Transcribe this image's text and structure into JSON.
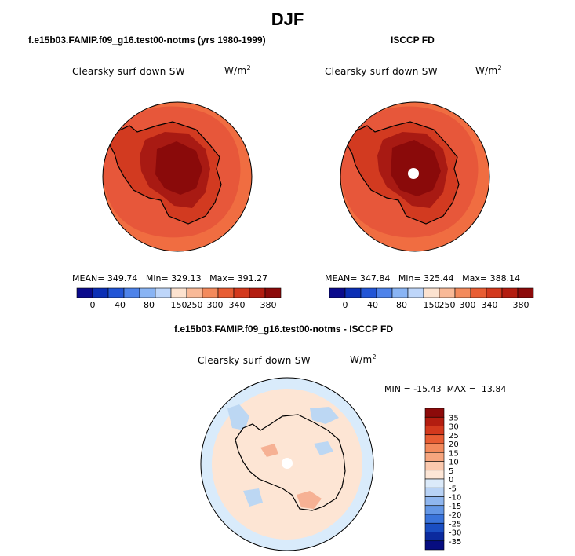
{
  "page": {
    "title": "DJF",
    "diff_title": "f.e15b03.FAMIP.f09_g16.test00-notms - ISCCP FD"
  },
  "colors": {
    "coast": "#000000",
    "ocean_outer_top": "#f06d41",
    "ocean_inner_top": "#e7573a",
    "antarctica_top": "#d23a20",
    "plateau_top": "#a81a13",
    "dome_top": "#8a0a0a",
    "missing": "#ffffff",
    "diff_ocean": "#fde5d4",
    "diff_ring": "#d9ebfb",
    "diff_pos": "#f6b194",
    "diff_neg": "#bcd7f3"
  },
  "chart_data": [
    {
      "type": "heatmap",
      "title": "f.e15b03.FAMIP.f09_g16.test00-notms (yrs 1980-1999)",
      "subtitle": "Clearsky surf down SW",
      "units_base": "W/m",
      "units_exp": "2",
      "stats": {
        "mean_label": "MEAN=",
        "mean": "349.74",
        "min_label": "Min=",
        "min": "329.13",
        "max_label": "Max=",
        "max": "391.27"
      },
      "colorbar": {
        "orientation": "horizontal",
        "levels": [
          "0",
          "40",
          "80",
          "150",
          "250",
          "300",
          "340",
          "380"
        ],
        "colors": [
          "#0a0a8c",
          "#0b2fb5",
          "#2255d6",
          "#4e83ea",
          "#89b4f4",
          "#bed6fa",
          "#fce2cf",
          "#f9b997",
          "#f38a5c",
          "#e85d33",
          "#d3391d",
          "#b31d10",
          "#8c0a0a"
        ]
      }
    },
    {
      "type": "heatmap",
      "title": "ISCCP FD",
      "subtitle": "Clearsky surf down SW",
      "units_base": "W/m",
      "units_exp": "2",
      "stats": {
        "mean_label": "MEAN=",
        "mean": "347.84",
        "min_label": "Min=",
        "min": "325.44",
        "max_label": "Max=",
        "max": "388.14"
      },
      "colorbar": {
        "orientation": "horizontal",
        "levels": [
          "0",
          "40",
          "80",
          "150",
          "250",
          "300",
          "340",
          "380"
        ],
        "colors": [
          "#0a0a8c",
          "#0b2fb5",
          "#2255d6",
          "#4e83ea",
          "#89b4f4",
          "#bed6fa",
          "#fce2cf",
          "#f9b997",
          "#f38a5c",
          "#e85d33",
          "#d3391d",
          "#b31d10",
          "#8c0a0a"
        ]
      }
    },
    {
      "type": "heatmap",
      "title": "f.e15b03.FAMIP.f09_g16.test00-notms - ISCCP FD",
      "subtitle": "Clearsky surf down SW",
      "units_base": "W/m",
      "units_exp": "2",
      "stats": {
        "min_label": "MIN =",
        "min": "-15.43",
        "max_label": "MAX =",
        "max": "13.84"
      },
      "colorbar": {
        "orientation": "vertical",
        "levels": [
          "35",
          "30",
          "25",
          "20",
          "15",
          "10",
          "5",
          "0",
          "-5",
          "-10",
          "-15",
          "-20",
          "-25",
          "-30",
          "-35"
        ],
        "colors": [
          "#8c0a0a",
          "#b31d10",
          "#d3391d",
          "#e85d33",
          "#f38a5c",
          "#f6a57e",
          "#fbc9ae",
          "#fde6d6",
          "#dbeafa",
          "#b8d2f5",
          "#8fb6ef",
          "#6497e6",
          "#3a74db",
          "#1a4ec2",
          "#0b2a9e",
          "#070d80"
        ]
      }
    }
  ]
}
